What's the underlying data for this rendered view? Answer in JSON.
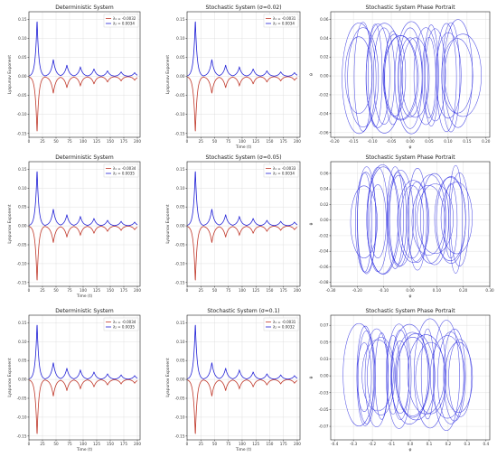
{
  "figure": {
    "layout": "3x3 grid of subplots"
  },
  "colors": {
    "lambda1": "#c0392b",
    "lambda2": "#1f1fd6",
    "portrait": "#3030e0"
  },
  "chart_data": [
    {
      "type": "line",
      "title": "Deterministic System",
      "xlabel": "",
      "ylabel": "Lyapunov Exponent",
      "xlim": [
        0,
        205
      ],
      "ylim": [
        -0.16,
        0.17
      ],
      "xticks": [
        0,
        25,
        50,
        75,
        100,
        125,
        150,
        175,
        200
      ],
      "yticks": [
        -0.15,
        -0.1,
        -0.05,
        0.0,
        0.05,
        0.1,
        0.15
      ],
      "peaks": [
        [
          15,
          0.15
        ],
        [
          45,
          0.045
        ],
        [
          70,
          0.03
        ],
        [
          95,
          0.025
        ],
        [
          120,
          0.02
        ],
        [
          145,
          0.015
        ],
        [
          170,
          0.012
        ],
        [
          195,
          0.01
        ]
      ],
      "series": [
        {
          "name": "λ₁ = -0.0032",
          "sign": -1
        },
        {
          "name": "λ₂ = 0.0034",
          "sign": 1
        }
      ],
      "grid": true,
      "legend": "top-right"
    },
    {
      "type": "line",
      "title": "Stochastic System (σ=0.02)",
      "xlabel": "Time (t)",
      "ylabel": "Lyapunov Exponent",
      "xlim": [
        0,
        205
      ],
      "ylim": [
        -0.16,
        0.17
      ],
      "xticks": [
        0,
        25,
        50,
        75,
        100,
        125,
        150,
        175,
        200
      ],
      "yticks": [
        -0.15,
        -0.1,
        -0.05,
        0.0,
        0.05,
        0.1,
        0.15
      ],
      "peaks": [
        [
          15,
          0.15
        ],
        [
          45,
          0.045
        ],
        [
          70,
          0.03
        ],
        [
          95,
          0.025
        ],
        [
          120,
          0.02
        ],
        [
          145,
          0.015
        ],
        [
          170,
          0.012
        ],
        [
          195,
          0.01
        ]
      ],
      "series": [
        {
          "name": "λ₁ = -0.0031",
          "sign": -1
        },
        {
          "name": "λ₂ = 0.0034",
          "sign": 1
        }
      ],
      "grid": true,
      "legend": "top-right"
    },
    {
      "type": "scatter",
      "title": "Stochastic System Phase Portrait",
      "xlabel": "φ",
      "ylabel": "θ",
      "xlim": [
        -0.21,
        0.21
      ],
      "ylim": [
        -0.065,
        0.068
      ],
      "xticks": [
        -0.2,
        -0.15,
        -0.1,
        -0.05,
        0.0,
        0.05,
        0.1,
        0.15,
        0.2
      ],
      "yticks": [
        -0.06,
        -0.04,
        -0.02,
        0.0,
        0.02,
        0.04,
        0.06
      ],
      "grid": true,
      "legend": "none"
    },
    {
      "type": "line",
      "title": "Deterministic System",
      "xlabel": "Time (t)",
      "ylabel": "Lyapunov Exponent",
      "xlim": [
        0,
        205
      ],
      "ylim": [
        -0.16,
        0.17
      ],
      "xticks": [
        0,
        25,
        50,
        75,
        100,
        125,
        150,
        175,
        200
      ],
      "yticks": [
        -0.15,
        -0.1,
        -0.05,
        0.0,
        0.05,
        0.1,
        0.15
      ],
      "peaks": [
        [
          15,
          0.15
        ],
        [
          45,
          0.045
        ],
        [
          70,
          0.03
        ],
        [
          95,
          0.025
        ],
        [
          120,
          0.02
        ],
        [
          145,
          0.015
        ],
        [
          170,
          0.012
        ],
        [
          195,
          0.01
        ]
      ],
      "series": [
        {
          "name": "λ₁ = -0.0034",
          "sign": -1
        },
        {
          "name": "λ₂ = 0.0035",
          "sign": 1
        }
      ],
      "grid": true,
      "legend": "top-right"
    },
    {
      "type": "line",
      "title": "Stochastic System (σ=0.05)",
      "xlabel": "",
      "ylabel": "Lyapunov Exponent",
      "xlim": [
        0,
        205
      ],
      "ylim": [
        -0.16,
        0.17
      ],
      "xticks": [
        0,
        25,
        50,
        75,
        100,
        125,
        150,
        175,
        200
      ],
      "yticks": [
        -0.15,
        -0.1,
        -0.05,
        0.0,
        0.05,
        0.1,
        0.15
      ],
      "peaks": [
        [
          15,
          0.15
        ],
        [
          45,
          0.045
        ],
        [
          70,
          0.03
        ],
        [
          95,
          0.025
        ],
        [
          120,
          0.02
        ],
        [
          145,
          0.015
        ],
        [
          170,
          0.012
        ],
        [
          195,
          0.01
        ]
      ],
      "series": [
        {
          "name": "λ₁ = -0.0033",
          "sign": -1
        },
        {
          "name": "λ₂ = 0.0034",
          "sign": 1
        }
      ],
      "grid": true,
      "legend": "top-right"
    },
    {
      "type": "scatter",
      "title": "Stochastic System Phase Portrait",
      "xlabel": "φ",
      "ylabel": "θ",
      "xlim": [
        -0.3,
        0.3
      ],
      "ylim": [
        -0.085,
        0.075
      ],
      "xticks": [
        -0.3,
        -0.2,
        -0.1,
        0.0,
        0.1,
        0.2,
        0.3
      ],
      "yticks": [
        -0.08,
        -0.06,
        -0.04,
        -0.02,
        0.0,
        0.02,
        0.04,
        0.06
      ],
      "grid": true,
      "legend": "none"
    },
    {
      "type": "line",
      "title": "Deterministic System",
      "xlabel": "Time (t)",
      "ylabel": "Lyapunov Exponent",
      "xlim": [
        0,
        205
      ],
      "ylim": [
        -0.16,
        0.17
      ],
      "xticks": [
        0,
        25,
        50,
        75,
        100,
        125,
        150,
        175,
        200
      ],
      "yticks": [
        -0.15,
        -0.1,
        -0.05,
        0.0,
        0.05,
        0.1,
        0.15
      ],
      "peaks": [
        [
          15,
          0.15
        ],
        [
          45,
          0.045
        ],
        [
          70,
          0.03
        ],
        [
          95,
          0.025
        ],
        [
          120,
          0.02
        ],
        [
          145,
          0.015
        ],
        [
          170,
          0.012
        ],
        [
          195,
          0.01
        ]
      ],
      "series": [
        {
          "name": "λ₁ = -0.0034",
          "sign": -1
        },
        {
          "name": "λ₂ = 0.0035",
          "sign": 1
        }
      ],
      "grid": true,
      "legend": "top-right"
    },
    {
      "type": "line",
      "title": "Stochastic System (σ=0.1)",
      "xlabel": "Time (t)",
      "ylabel": "Lyapunov Exponent",
      "xlim": [
        0,
        205
      ],
      "ylim": [
        -0.16,
        0.17
      ],
      "xticks": [
        0,
        25,
        50,
        75,
        100,
        125,
        150,
        175,
        200
      ],
      "yticks": [
        -0.15,
        -0.1,
        -0.05,
        0.0,
        0.05,
        0.1,
        0.15
      ],
      "peaks": [
        [
          15,
          0.15
        ],
        [
          45,
          0.045
        ],
        [
          70,
          0.03
        ],
        [
          95,
          0.025
        ],
        [
          120,
          0.02
        ],
        [
          145,
          0.015
        ],
        [
          170,
          0.012
        ],
        [
          195,
          0.01
        ]
      ],
      "series": [
        {
          "name": "λ₁ = -0.0031",
          "sign": -1
        },
        {
          "name": "λ₂ = 0.0032",
          "sign": 1
        }
      ],
      "grid": true,
      "legend": "top-right"
    },
    {
      "type": "scatter",
      "title": "Stochastic System Phase Portrait",
      "xlabel": "φ",
      "ylabel": "θ",
      "xlim": [
        -0.42,
        0.42
      ],
      "ylim": [
        -0.095,
        0.09
      ],
      "xticks": [
        -0.4,
        -0.3,
        -0.2,
        -0.1,
        0.0,
        0.1,
        0.2,
        0.3,
        0.4
      ],
      "yticks": [
        -0.075,
        -0.05,
        -0.025,
        0.0,
        0.025,
        0.05,
        0.075
      ],
      "grid": true,
      "legend": "none"
    }
  ]
}
